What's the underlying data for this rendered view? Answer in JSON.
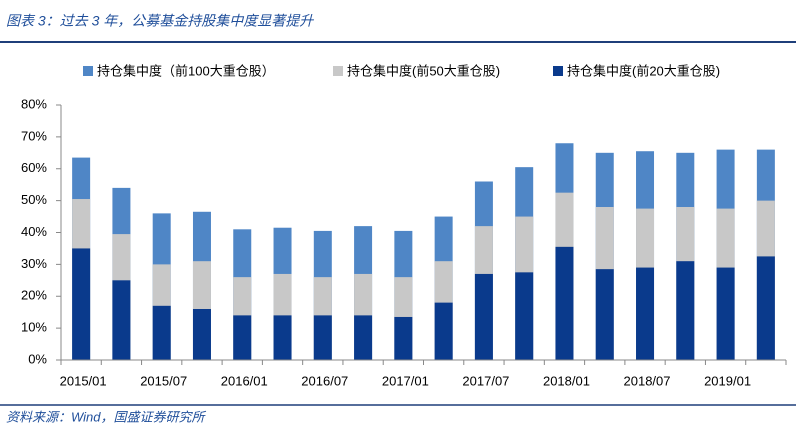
{
  "chart_data": {
    "type": "bar",
    "title": "图表 3：过去 3 年，公募基金持股集中度显著提升",
    "source": "资料来源：Wind，国盛证券研究所",
    "categories": [
      "2015/01",
      null,
      "2015/07",
      null,
      "2016/01",
      null,
      "2016/07",
      null,
      "2017/01",
      null,
      "2017/07",
      null,
      "2018/01",
      null,
      "2018/07",
      null,
      "2019/01",
      null
    ],
    "series": [
      {
        "name": "持仓集中度（前100大重仓股）",
        "color": "#4f86c6",
        "values": [
          63.5,
          54,
          46,
          46.5,
          41,
          41.5,
          40.5,
          42,
          40.5,
          45,
          56,
          60.5,
          68,
          65,
          65.5,
          65,
          66,
          66
        ]
      },
      {
        "name": "持仓集中度(前50大重仓股)",
        "color": "#c8c8c8",
        "values": [
          50.5,
          39.5,
          30,
          31,
          26,
          27,
          26,
          27,
          26,
          31,
          42,
          45,
          52.5,
          48,
          47.5,
          48,
          47.5,
          50
        ]
      },
      {
        "name": "持仓集中度(前20大重仓股)",
        "color": "#0a3a8c",
        "values": [
          35,
          25,
          17,
          16,
          14,
          14,
          14,
          14,
          13.5,
          18,
          27,
          27.5,
          35.5,
          28.5,
          29,
          31,
          29,
          32.5
        ]
      }
    ],
    "ylim": [
      0,
      80
    ],
    "yticks": [
      {
        "value": 0,
        "label": "0%"
      },
      {
        "value": 10,
        "label": "10%"
      },
      {
        "value": 20,
        "label": "20%"
      },
      {
        "value": 30,
        "label": "30%"
      },
      {
        "value": 40,
        "label": "40%"
      },
      {
        "value": 50,
        "label": "50%"
      },
      {
        "value": 60,
        "label": "60%"
      },
      {
        "value": 70,
        "label": "70%"
      },
      {
        "value": 80,
        "label": "80%"
      }
    ],
    "grid": false
  }
}
